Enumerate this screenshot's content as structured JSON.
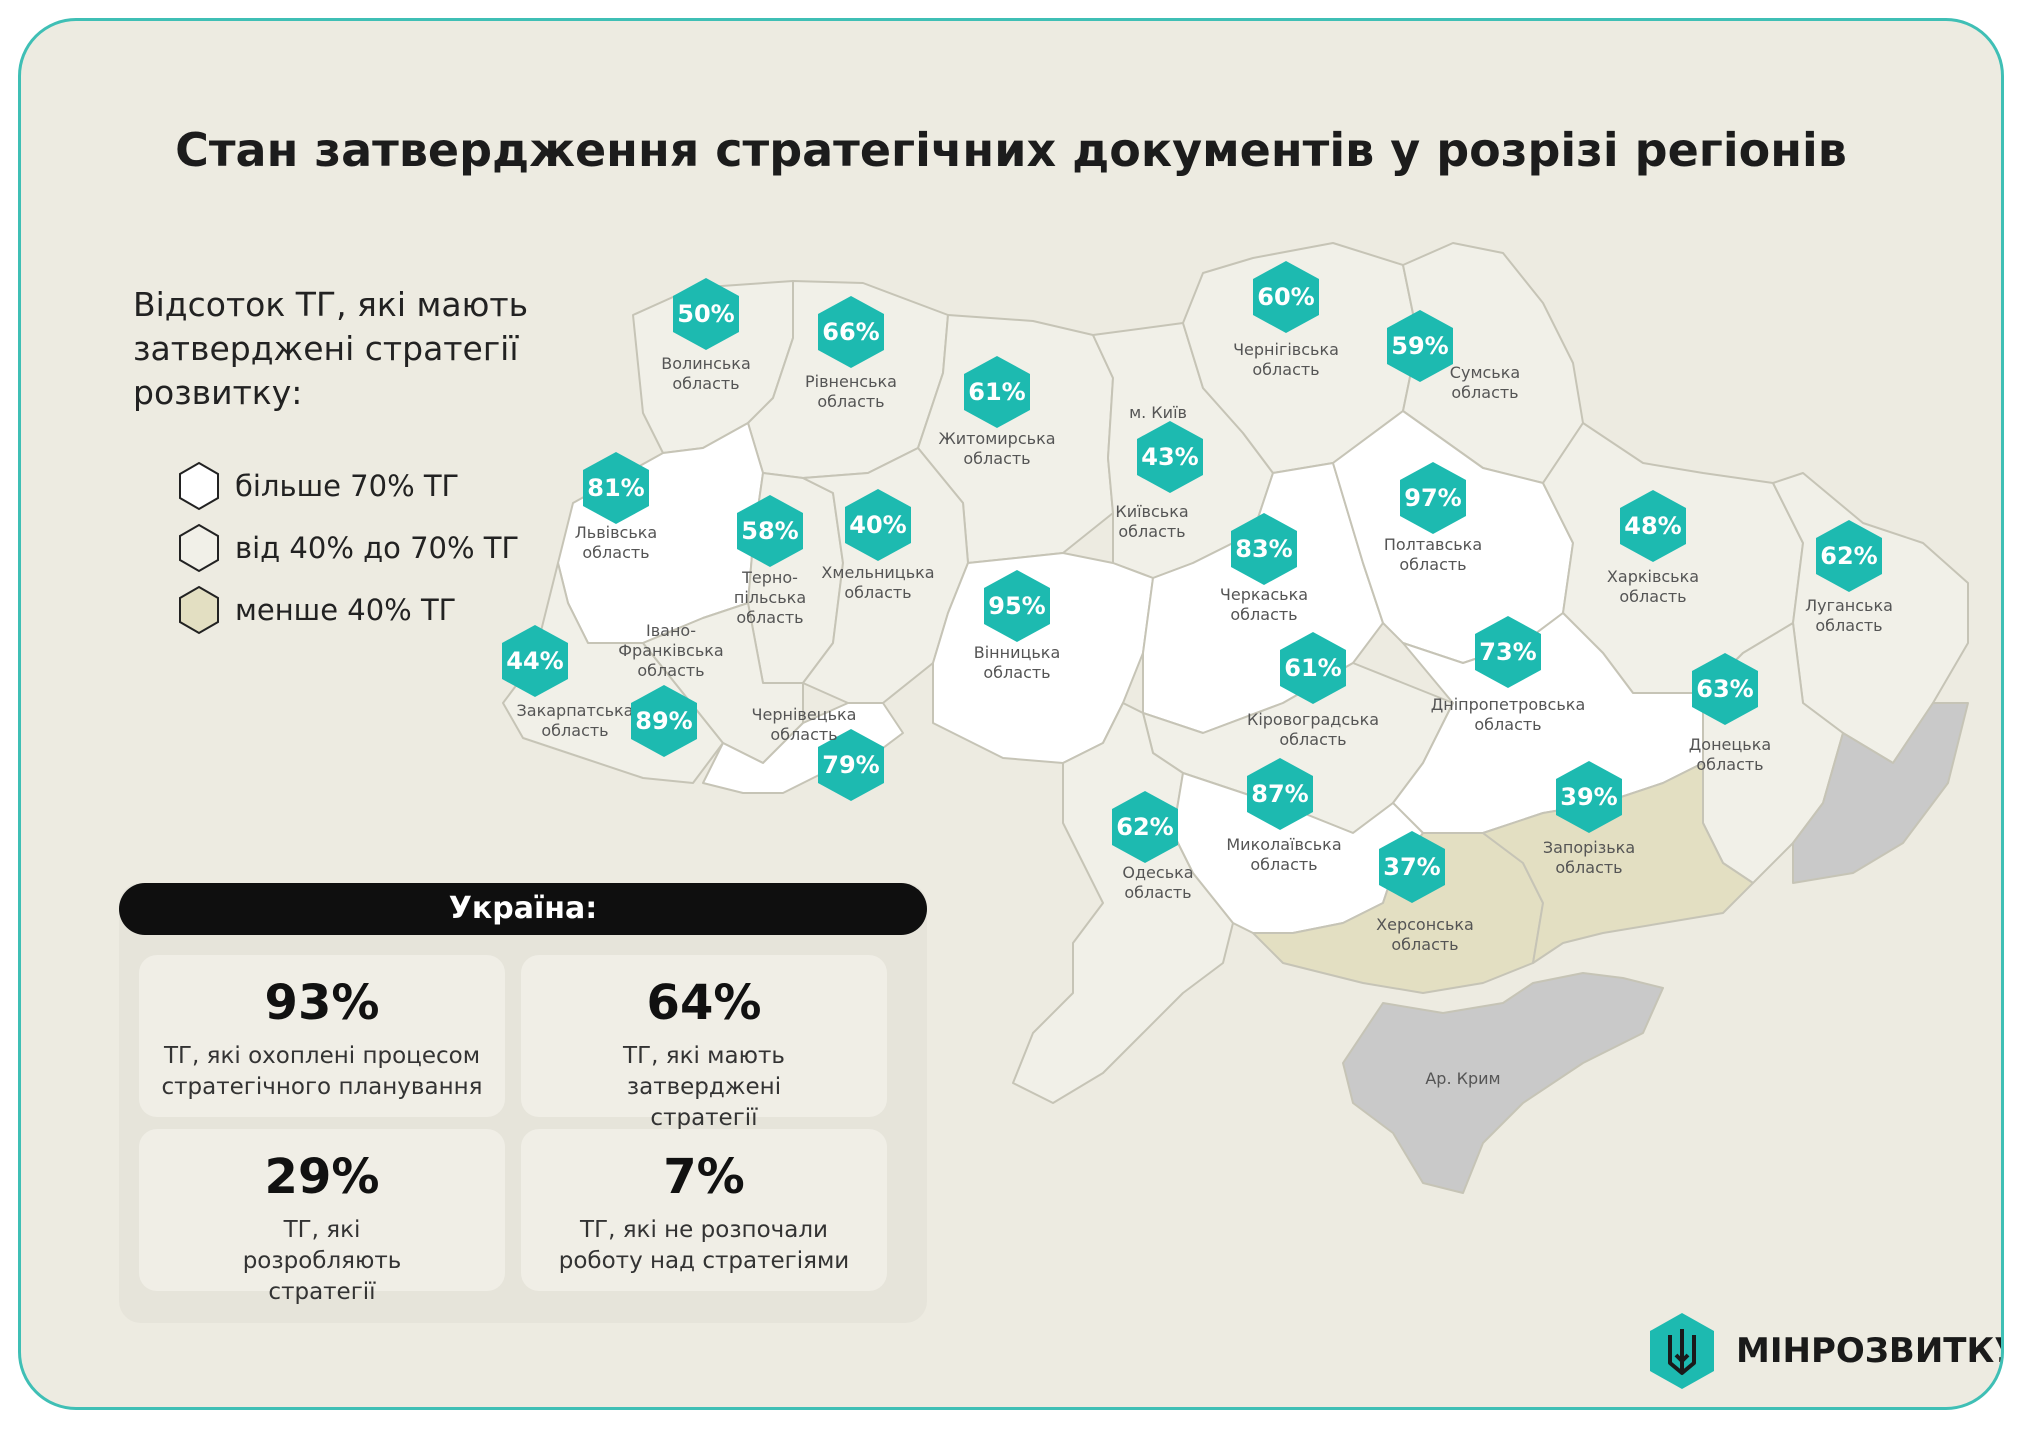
{
  "title": "Стан затвердження стратегічних документів у розрізі регіонів",
  "legend": {
    "title": "Відсоток ТГ, які мають затверджені стратегії розвитку:",
    "items": [
      {
        "label": "більше 70% ТГ",
        "color": "#ffffff"
      },
      {
        "label": "від 40% до 70% ТГ",
        "color": "#f1f0e8"
      },
      {
        "label": "менше 40% ТГ",
        "color": "#e3dfc2"
      }
    ]
  },
  "regions": [
    {
      "name": "Волинська\nобласть",
      "value": "50%"
    },
    {
      "name": "Рівненська\nобласть",
      "value": "66%"
    },
    {
      "name": "Житомирська\nобласть",
      "value": "61%"
    },
    {
      "name": "Чернігівська\nобласть",
      "value": "60%"
    },
    {
      "name": "Сумська\nобласть",
      "value": "59%"
    },
    {
      "name": "Київська\nобласть",
      "value": "43%"
    },
    {
      "name": "м. Київ",
      "value": ""
    },
    {
      "name": "Львівська\nобласть",
      "value": "81%"
    },
    {
      "name": "Терно-\nпільська\nобласть",
      "value": "58%"
    },
    {
      "name": "Хмельницька\nобласть",
      "value": "40%"
    },
    {
      "name": "Вінницька\nобласть",
      "value": "95%"
    },
    {
      "name": "Черкаська\nобласть",
      "value": "83%"
    },
    {
      "name": "Полтавська\nобласть",
      "value": "97%"
    },
    {
      "name": "Харківська\nобласть",
      "value": "48%"
    },
    {
      "name": "Луганська\nобласть",
      "value": "62%"
    },
    {
      "name": "Закарпатська\nобласть",
      "value": "44%"
    },
    {
      "name": "Івано-\nФранківська\nобласть",
      "value": "89%"
    },
    {
      "name": "Чернівецька\nобласть",
      "value": "79%"
    },
    {
      "name": "Кіровоградська\nобласть",
      "value": "61%"
    },
    {
      "name": "Дніпропетровська\nобласть",
      "value": "73%"
    },
    {
      "name": "Донецька\nобласть",
      "value": "63%"
    },
    {
      "name": "Одеська\nобласть",
      "value": "62%"
    },
    {
      "name": "Миколаївська\nобласть",
      "value": "87%"
    },
    {
      "name": "Херсонська\nобласть",
      "value": "37%"
    },
    {
      "name": "Запорізька\nобласть",
      "value": "39%"
    },
    {
      "name": "Ар. Крим",
      "value": ""
    }
  ],
  "summary": {
    "header": "Україна:",
    "stats": [
      {
        "value": "93%",
        "label": "ТГ, які охоплені процесом стратегічного планування"
      },
      {
        "value": "64%",
        "label": "ТГ, які мають затверджені стратегії"
      },
      {
        "value": "29%",
        "label": "ТГ, які розробляють стратегії"
      },
      {
        "value": "7%",
        "label": "ТГ, які не розпочали роботу над стратегіями"
      }
    ]
  },
  "brand": {
    "name": "МІНРОЗВИТКУ",
    "icon": "trident-icon"
  },
  "colors": {
    "accent": "#1dbab0",
    "border": "#3fbfb5",
    "background": "#edebe1",
    "occupied": "#c9c9c9"
  }
}
